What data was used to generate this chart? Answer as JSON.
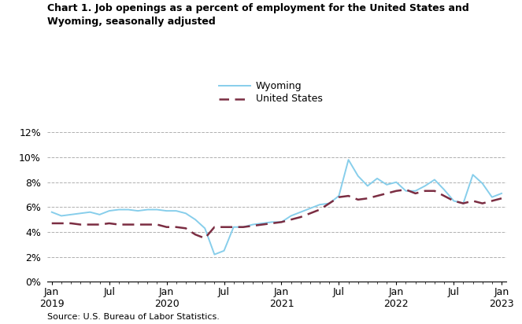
{
  "title": "Chart 1. Job openings as a percent of employment for the United States and\nWyoming, seasonally adjusted",
  "source": "Source: U.S. Bureau of Labor Statistics.",
  "wyoming_color": "#87CEEB",
  "us_color": "#7B2D42",
  "wyoming_label": "Wyoming",
  "us_label": "United States",
  "ylim": [
    0,
    0.13
  ],
  "yticks": [
    0,
    0.02,
    0.04,
    0.06,
    0.08,
    0.1,
    0.12
  ],
  "ytick_labels": [
    "0%",
    "2%",
    "4%",
    "6%",
    "8%",
    "10%",
    "12%"
  ],
  "wyoming": [
    0.056,
    0.053,
    0.054,
    0.055,
    0.056,
    0.054,
    0.057,
    0.058,
    0.058,
    0.057,
    0.058,
    0.058,
    0.057,
    0.057,
    0.055,
    0.05,
    0.043,
    0.022,
    0.025,
    0.044,
    0.044,
    0.046,
    0.047,
    0.048,
    0.048,
    0.053,
    0.056,
    0.059,
    0.062,
    0.063,
    0.069,
    0.098,
    0.085,
    0.077,
    0.083,
    0.078,
    0.08,
    0.073,
    0.073,
    0.077,
    0.082,
    0.074,
    0.065,
    0.063,
    0.086,
    0.079,
    0.068,
    0.071
  ],
  "us": [
    0.047,
    0.047,
    0.047,
    0.046,
    0.046,
    0.046,
    0.047,
    0.046,
    0.046,
    0.046,
    0.046,
    0.046,
    0.044,
    0.044,
    0.043,
    0.038,
    0.035,
    0.044,
    0.044,
    0.044,
    0.044,
    0.045,
    0.046,
    0.047,
    0.048,
    0.05,
    0.052,
    0.055,
    0.058,
    0.063,
    0.068,
    0.069,
    0.066,
    0.067,
    0.069,
    0.071,
    0.073,
    0.074,
    0.071,
    0.073,
    0.073,
    0.069,
    0.065,
    0.063,
    0.065,
    0.063,
    0.065,
    0.067
  ],
  "n_months": 48,
  "x_tick_positions": [
    0,
    6,
    12,
    18,
    24,
    30,
    36,
    42,
    47
  ],
  "x_tick_labels_top": [
    "Jan",
    "Jul",
    "Jan",
    "Jul",
    "Jan",
    "Jul",
    "Jan",
    "Jul",
    "Jan"
  ],
  "x_tick_labels_bottom": [
    "2019",
    "",
    "2020",
    "",
    "2021",
    "",
    "2022",
    "",
    "2023"
  ]
}
